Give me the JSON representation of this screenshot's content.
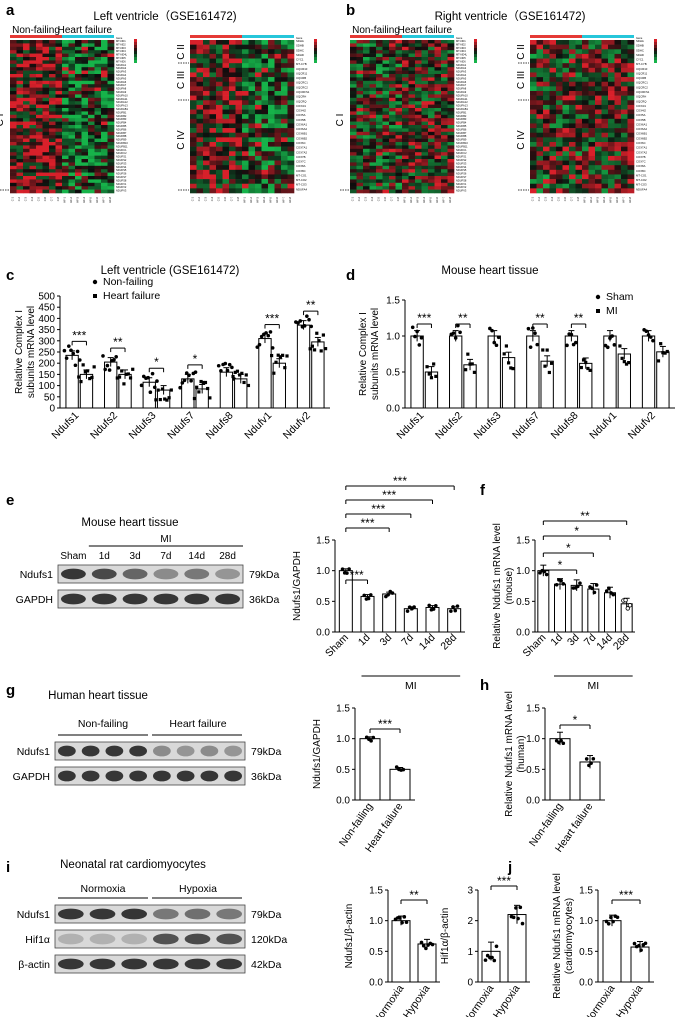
{
  "panels": {
    "a": {
      "letter": "a",
      "title": "Left ventricle（GSE161472)",
      "group1": "Non-failing",
      "group2": "Heart failure",
      "complex_left": [
        "C I"
      ],
      "complex_right": [
        "C II",
        "C III",
        "C IV"
      ],
      "gene_header": "Gene",
      "genes_left": [
        "MT-ND1",
        "MT-ND2",
        "MT-ND3",
        "MT-ND4",
        "MT-ND4L",
        "MT-ND5",
        "MT-ND6",
        "NDUFA1",
        "NDUFA2",
        "NDUFA3",
        "NDUFA4",
        "NDUFA5",
        "NDUFA6",
        "NDUFA7",
        "NDUFA8",
        "NDUFA9",
        "NDUFA10",
        "NDUFA11",
        "NDUFA12",
        "NDUFA13",
        "NDUFAB1",
        "NDUFB1",
        "NDUFB2",
        "NDUFB3",
        "NDUFB4",
        "NDUFB5",
        "NDUFB6",
        "NDUFB7",
        "NDUFB8",
        "NDUFB9",
        "NDUFB10",
        "NDUFB11",
        "NDUFC1",
        "NDUFC2",
        "NDUFS1",
        "NDUFS2",
        "NDUFS3",
        "NDUFS4",
        "NDUFS5",
        "NDUFS6",
        "NDUFS7",
        "NDUFS8",
        "NDUFV1",
        "NDUFV2",
        "NDUFV3"
      ],
      "genes_right": [
        "SDHA",
        "SDHB",
        "SDHC",
        "SDHD",
        "CYC1",
        "MT-CYB",
        "UQCR10",
        "UQCR11",
        "UQCRB",
        "UQCRC1",
        "UQCRC2",
        "UQCRFS1",
        "UQCRH",
        "UQCRQ",
        "COX4I1",
        "COX4I2",
        "COX5A",
        "COX5B",
        "COX6A1",
        "COX6A2",
        "COX6B1",
        "COX6B2",
        "COX6C",
        "COX7A1",
        "COX7A2",
        "COX7B",
        "COX7C",
        "COX8A",
        "COX8C",
        "MT-CO1",
        "MT-CO2",
        "MT-CO3",
        "NDUFA4"
      ],
      "samples": [
        "C-1",
        "C-2",
        "C-3",
        "C-4",
        "C-5",
        "C-6",
        "C-7",
        "C-8",
        "HF-1",
        "HF-2",
        "HF-3",
        "HF-4",
        "HF-5",
        "HF-6",
        "HF-7",
        "HF-8"
      ]
    },
    "b": {
      "letter": "b",
      "title": "Right ventricle（GSE161472)",
      "group1": "Non-failing",
      "group2": "Heart failure",
      "complex_left": [
        "C I"
      ],
      "complex_right": [
        "C II",
        "C III",
        "C IV"
      ]
    },
    "c": {
      "letter": "c",
      "title": "Left ventricle (GSE161472)",
      "ylabel": "Relative Complex I\nsubunits mRNA level",
      "legend": [
        "Non-failing",
        "Heart failure"
      ],
      "yticks": [
        "0",
        "50",
        "100",
        "150",
        "200",
        "250",
        "300",
        "350",
        "400",
        "450",
        "500"
      ]
    },
    "d": {
      "letter": "d",
      "title": "Mouse heart tissue",
      "ylabel": "Relative Complex I\nsubunits mRNA level",
      "legend": [
        "Sham",
        "MI"
      ],
      "yticks": [
        "0.0",
        "0.5",
        "1.0",
        "1.5"
      ]
    },
    "e": {
      "letter": "e",
      "title": "Mouse heart tissue",
      "mi_label": "MI",
      "lanes": [
        "Sham",
        "1d",
        "3d",
        "7d",
        "14d",
        "28d"
      ],
      "rows": [
        {
          "name": "Ndufs1",
          "kda": "79kDa"
        },
        {
          "name": "GAPDH",
          "kda": "36kDa"
        }
      ],
      "ylabel": "Ndufs1/GAPDH",
      "yticks": [
        "0.0",
        "0.5",
        "1.0",
        "1.5"
      ],
      "xcats": [
        "Sham",
        "1d",
        "3d",
        "7d",
        "14d",
        "28d"
      ],
      "xgroup": "MI"
    },
    "f": {
      "letter": "f",
      "ylabel": "Relative Ndufs1 mRNA level\n(mouse)",
      "yticks": [
        "0.0",
        "0.5",
        "1.0",
        "1.5"
      ],
      "xcats": [
        "Sham",
        "1d",
        "3d",
        "7d",
        "14d",
        "28d"
      ],
      "xgroup": "MI"
    },
    "g": {
      "letter": "g",
      "title": "Human heart tissue",
      "group1": "Non-failing",
      "group2": "Heart failure",
      "rows": [
        {
          "name": "Ndufs1",
          "kda": "79kDa"
        },
        {
          "name": "GAPDH",
          "kda": "36kDa"
        }
      ],
      "ylabel": "Ndufs1/GAPDH",
      "yticks": [
        "0.0",
        "0.5",
        "1.0",
        "1.5"
      ],
      "xcats": [
        "Non-failing",
        "Heart failure"
      ]
    },
    "h": {
      "letter": "h",
      "ylabel": "Relative Ndufs1 mRNA level\n(human)",
      "yticks": [
        "0.0",
        "0.5",
        "1.0",
        "1.5"
      ],
      "xcats": [
        "Non-failing",
        "Heart failure"
      ]
    },
    "i": {
      "letter": "i",
      "title": "Neonatal rat cardiomyocytes",
      "group1": "Normoxia",
      "group2": "Hypoxia",
      "rows": [
        {
          "name": "Ndufs1",
          "kda": "79kDa"
        },
        {
          "name": "Hif1α",
          "kda": "120kDa"
        },
        {
          "name": "β-actin",
          "kda": "42kDa"
        }
      ],
      "ylabel1": "Ndufs1/β-actin",
      "yticks1": [
        "0.0",
        "0.5",
        "1.0",
        "1.5"
      ],
      "ylabel2": "Hif1α/β-actin",
      "yticks2": [
        "0",
        "1",
        "2",
        "3"
      ],
      "xcats": [
        "Normoxia",
        "Hypoxia"
      ]
    },
    "j": {
      "letter": "j",
      "ylabel": "Relative Ndufs1 mRNA level\n(cardiomyocytes)",
      "yticks": [
        "0.0",
        "0.5",
        "1.0",
        "1.5"
      ],
      "xcats": [
        "Normoxia",
        "Hypoxia"
      ]
    }
  },
  "colors": {
    "heat_red": "#d8202a",
    "heat_green": "#16b34a",
    "heat_black": "#0d0d0d",
    "bar_fill": "#ffffff",
    "bar_stroke": "#000000",
    "group_bar_red": "#e53935",
    "group_bar_cyan": "#26c6da"
  },
  "chart_data": [
    {
      "panel": "c",
      "type": "bar",
      "categories": [
        "Ndufs1",
        "Ndufs2",
        "Ndufs3",
        "Ndufs7",
        "Ndufs8",
        "Ndufv1",
        "Ndufv2"
      ],
      "series": [
        {
          "name": "Non-failing",
          "values": [
            235,
            205,
            115,
            130,
            160,
            310,
            370
          ]
        },
        {
          "name": "Heart failure",
          "values": [
            150,
            150,
            80,
            85,
            130,
            200,
            295
          ]
        }
      ],
      "ylim": [
        0,
        500
      ],
      "significance": [
        "***",
        "**",
        "*",
        "*",
        "",
        "***",
        "**"
      ]
    },
    {
      "panel": "d",
      "type": "bar",
      "categories": [
        "Ndufs1",
        "Ndufs2",
        "Ndufs3",
        "Ndufs7",
        "Ndufs8",
        "Ndufv1",
        "Ndufv2"
      ],
      "series": [
        {
          "name": "Sham",
          "values": [
            1.0,
            1.0,
            1.0,
            1.0,
            1.0,
            1.0,
            1.0
          ]
        },
        {
          "name": "MI",
          "values": [
            0.5,
            0.6,
            0.7,
            0.65,
            0.62,
            0.75,
            0.78
          ]
        }
      ],
      "ylim": [
        0,
        1.5
      ],
      "significance": [
        "***",
        "**",
        "",
        "**",
        "**",
        "",
        ""
      ]
    },
    {
      "panel": "e",
      "type": "bar",
      "categories": [
        "Sham",
        "1d",
        "3d",
        "7d",
        "14d",
        "28d"
      ],
      "values": [
        1.0,
        0.58,
        0.62,
        0.38,
        0.4,
        0.38
      ],
      "ylim": [
        0,
        1.5
      ],
      "significance": [
        "***",
        "***",
        "***",
        "***",
        "***"
      ]
    },
    {
      "panel": "f",
      "type": "bar",
      "categories": [
        "Sham",
        "1d",
        "3d",
        "7d",
        "14d",
        "28d"
      ],
      "values": [
        1.0,
        0.78,
        0.76,
        0.7,
        0.64,
        0.46
      ],
      "ylim": [
        0,
        1.5
      ],
      "significance": [
        "*",
        "*",
        "*",
        "**"
      ]
    },
    {
      "panel": "g",
      "type": "bar",
      "categories": [
        "Non-failing",
        "Heart failure"
      ],
      "values": [
        1.0,
        0.5
      ],
      "ylim": [
        0,
        1.5
      ],
      "significance": [
        "***"
      ]
    },
    {
      "panel": "h",
      "type": "bar",
      "categories": [
        "Non-failing",
        "Heart failure"
      ],
      "values": [
        1.0,
        0.62
      ],
      "ylim": [
        0,
        1.5
      ],
      "significance": [
        "*"
      ]
    },
    {
      "panel": "i1",
      "type": "bar",
      "categories": [
        "Normoxia",
        "Hypoxia"
      ],
      "values": [
        1.0,
        0.62
      ],
      "ylim": [
        0,
        1.5
      ],
      "significance": [
        "**"
      ]
    },
    {
      "panel": "i2",
      "type": "bar",
      "categories": [
        "Normoxia",
        "Hypoxia"
      ],
      "values": [
        1.0,
        2.2
      ],
      "ylim": [
        0,
        3
      ],
      "significance": [
        "***"
      ]
    },
    {
      "panel": "j",
      "type": "bar",
      "categories": [
        "Normoxia",
        "Hypoxia"
      ],
      "values": [
        1.0,
        0.57
      ],
      "ylim": [
        0,
        1.5
      ],
      "significance": [
        "***"
      ]
    }
  ]
}
